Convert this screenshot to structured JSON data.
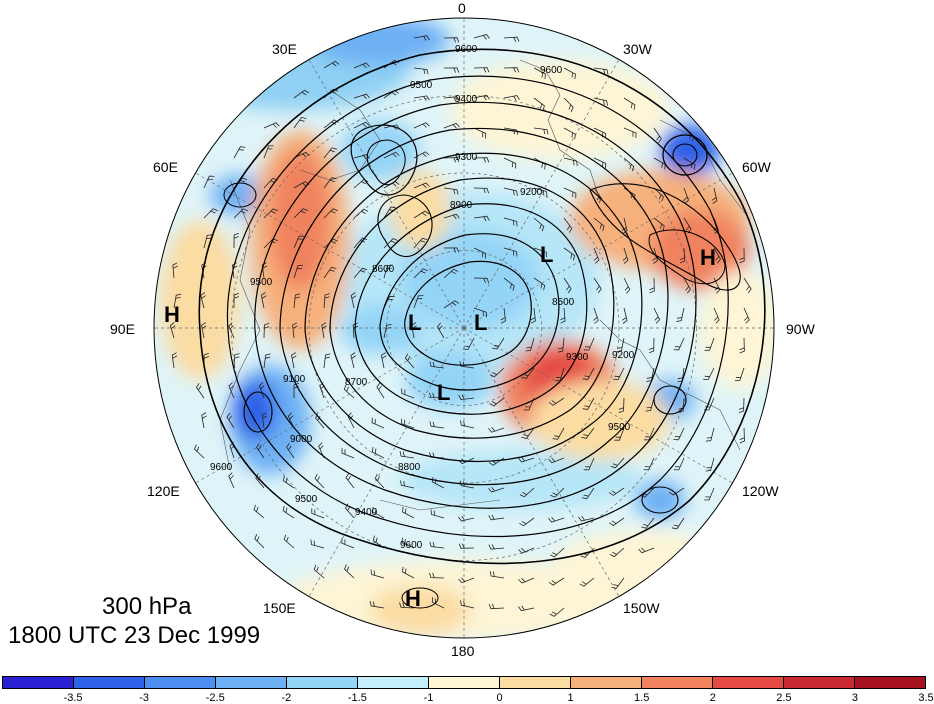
{
  "longitude_labels": [
    "0",
    "30W",
    "60W",
    "90W",
    "120W",
    "150W",
    "180",
    "150E",
    "120E",
    "90E",
    "60E",
    "30E"
  ],
  "title": {
    "level": "300 hPa",
    "time": "1800 UTC 23 Dec 1999"
  },
  "centers": {
    "high": "H",
    "low": "L"
  },
  "contour_labels": [
    "9600",
    "9500",
    "9400",
    "9300",
    "9200",
    "9100",
    "9000",
    "8900",
    "8800",
    "8700",
    "8600",
    "8500"
  ],
  "colorbar": {
    "ticks": [
      "-3.5",
      "-3",
      "-2.5",
      "-2",
      "-1.5",
      "-1",
      "0",
      "1",
      "1.5",
      "2",
      "2.5",
      "3",
      "3.5"
    ],
    "colors": [
      "#2a21d3",
      "#2f62e8",
      "#4c8ff0",
      "#6db0f4",
      "#94d4f7",
      "#c3eefa",
      "#fdf5d6",
      "#fbdca3",
      "#f6b07c",
      "#f0825e",
      "#e54a45",
      "#c92a32",
      "#a6121f"
    ]
  },
  "map_colors": {
    "background": "#ffffff",
    "neutral_fill": "#dff4f8",
    "contour": "#000000",
    "coast": "#555555"
  }
}
